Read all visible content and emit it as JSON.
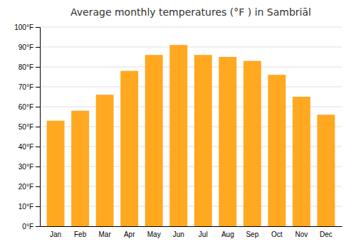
{
  "chart_data": {
    "type": "bar",
    "title": "Average monthly temperatures (°F ) in Sambriāl",
    "categories": [
      "Jan",
      "Feb",
      "Mar",
      "Apr",
      "May",
      "Jun",
      "Jul",
      "Aug",
      "Sep",
      "Oct",
      "Nov",
      "Dec"
    ],
    "values": [
      53,
      58,
      66,
      78,
      86,
      91,
      86,
      85,
      83,
      76,
      65,
      56
    ],
    "color": "#FFA820",
    "ylim": [
      0,
      100
    ],
    "yticks": [
      {
        "value": 0,
        "label": "0°F"
      },
      {
        "value": 10,
        "label": "10°F"
      },
      {
        "value": 20,
        "label": "20°F"
      },
      {
        "value": 30,
        "label": "30°F"
      },
      {
        "value": 40,
        "label": "40°F"
      },
      {
        "value": 50,
        "label": "50°F"
      },
      {
        "value": 60,
        "label": "60°F"
      },
      {
        "value": 70,
        "label": "70°F"
      },
      {
        "value": 80,
        "label": "80°F"
      },
      {
        "value": 90,
        "label": "90°F"
      },
      {
        "value": 100,
        "label": "100°F"
      }
    ],
    "grid": true
  }
}
